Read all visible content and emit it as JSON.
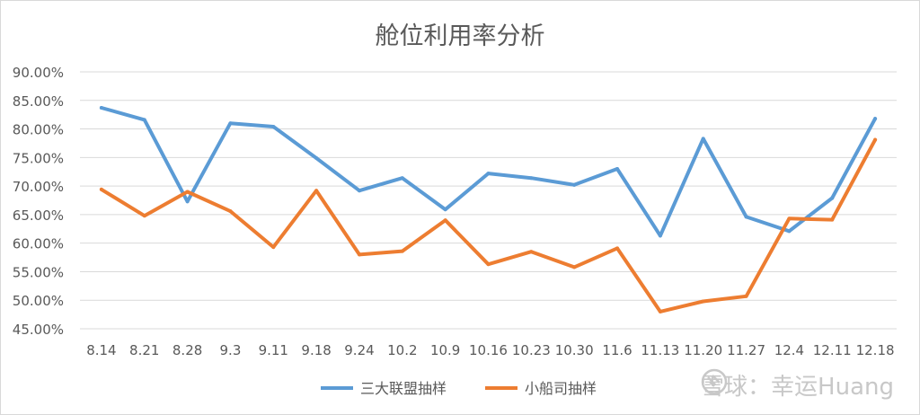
{
  "chart_data": {
    "type": "line",
    "title": "舱位利用率分析",
    "categories": [
      "8.14",
      "8.21",
      "8.28",
      "9.3",
      "9.11",
      "9.18",
      "9.24",
      "10.2",
      "10.9",
      "10.16",
      "10.23",
      "10.30",
      "11.6",
      "11.13",
      "11.20",
      "11.27",
      "12.4",
      "12.11",
      "12.18"
    ],
    "y_tick_labels": [
      "45.00%",
      "50.00%",
      "55.00%",
      "60.00%",
      "65.00%",
      "70.00%",
      "75.00%",
      "80.00%",
      "85.00%",
      "90.00%"
    ],
    "ylim": [
      45,
      90
    ],
    "y_step": 5,
    "grid": true,
    "legend_position": "bottom",
    "series": [
      {
        "name": "三大联盟抽样",
        "color": "#5b9bd5",
        "values": [
          83.7,
          81.6,
          67.3,
          81.0,
          80.4,
          74.9,
          69.2,
          71.4,
          65.9,
          72.2,
          71.4,
          70.2,
          73.0,
          61.3,
          78.3,
          64.6,
          62.1,
          67.9,
          81.8
        ]
      },
      {
        "name": "小船司抽样",
        "color": "#ed7d31",
        "values": [
          69.4,
          64.8,
          69.0,
          65.6,
          59.3,
          69.2,
          58.0,
          58.6,
          64.0,
          56.3,
          58.5,
          55.8,
          59.1,
          48.0,
          49.8,
          50.7,
          64.3,
          64.1,
          78.1
        ]
      }
    ]
  },
  "watermark": {
    "text": "雪球：幸运Huang",
    "icon": "snowball-logo-icon"
  }
}
